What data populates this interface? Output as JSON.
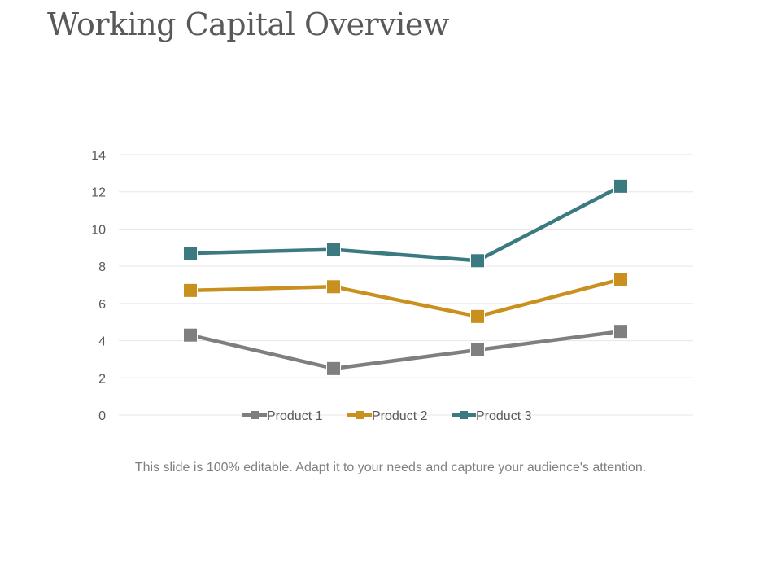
{
  "slide": {
    "title": "Working Capital Overview",
    "caption": "This slide is 100% editable. Adapt it to your needs and capture your audience's attention."
  },
  "chart_data": {
    "type": "line",
    "title": "",
    "xlabel": "",
    "ylabel": "",
    "categories": [
      "",
      "",
      "",
      ""
    ],
    "ylim": [
      0,
      14
    ],
    "yticks": [
      0,
      2,
      4,
      6,
      8,
      10,
      12,
      14
    ],
    "grid": true,
    "legend_position": "bottom-inside",
    "series": [
      {
        "name": "Product 1",
        "color": "#7f7f7f",
        "values": [
          4.3,
          2.5,
          3.5,
          4.5
        ]
      },
      {
        "name": "Product 2",
        "color": "#c9901e",
        "values": [
          6.7,
          6.9,
          5.3,
          7.3
        ]
      },
      {
        "name": "Product 3",
        "color": "#3a7a80",
        "values": [
          8.7,
          8.9,
          8.3,
          12.3
        ]
      }
    ]
  }
}
